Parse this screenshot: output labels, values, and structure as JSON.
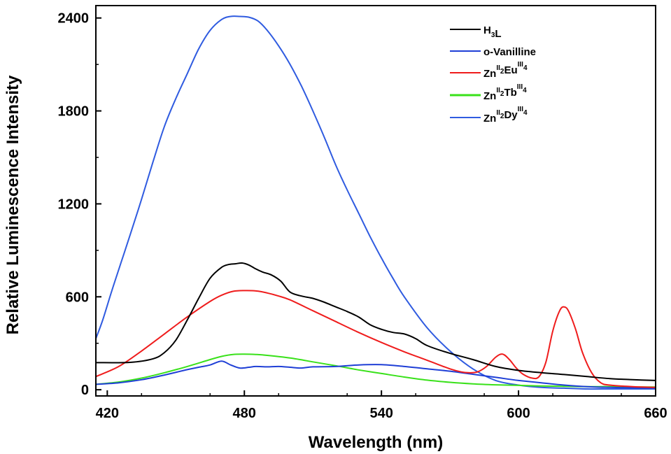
{
  "chart_data": {
    "type": "line",
    "title": "",
    "xlabel": "Wavelength (nm)",
    "ylabel": "Relative Luminescence Intensity",
    "xlim": [
      415,
      660
    ],
    "ylim": [
      -40,
      2480
    ],
    "xticks": [
      420,
      480,
      540,
      600,
      660
    ],
    "yticks": [
      0,
      600,
      1200,
      1800,
      2400
    ],
    "xtick_labels": [
      "420",
      "480",
      "540",
      "600",
      "660"
    ],
    "ytick_labels": [
      "0",
      "600",
      "1200",
      "1800",
      "2400"
    ],
    "grid": false,
    "legend_position": "top-right",
    "series": [
      {
        "name": "H3L",
        "legend": {
          "parts": [
            {
              "t": "H"
            },
            {
              "t": "3",
              "sub": true
            },
            {
              "t": "L"
            }
          ]
        },
        "color": "#000000",
        "x": [
          415,
          430,
          440,
          445,
          450,
          455,
          460,
          465,
          470,
          473,
          476,
          479,
          482,
          485,
          488,
          492,
          496,
          500,
          505,
          510,
          515,
          520,
          525,
          530,
          535,
          540,
          545,
          550,
          555,
          560,
          570,
          580,
          590,
          600,
          610,
          620,
          630,
          640,
          650,
          660
        ],
        "y": [
          175,
          177,
          200,
          240,
          320,
          450,
          590,
          720,
          790,
          808,
          813,
          818,
          805,
          780,
          760,
          740,
          700,
          630,
          605,
          590,
          565,
          535,
          505,
          470,
          420,
          390,
          370,
          360,
          330,
          285,
          235,
          195,
          150,
          125,
          110,
          98,
          85,
          72,
          65,
          60
        ]
      },
      {
        "name": "o-Vanilline",
        "legend": {
          "parts": [
            {
              "t": "o-Vanilline"
            }
          ]
        },
        "color": "#1f3fd6",
        "x": [
          415,
          425,
          435,
          445,
          455,
          460,
          465,
          470,
          474,
          478,
          482,
          485,
          490,
          495,
          500,
          505,
          510,
          520,
          530,
          540,
          550,
          560,
          570,
          580,
          590,
          600,
          610,
          620,
          630,
          640,
          650,
          660
        ],
        "y": [
          35,
          45,
          65,
          95,
          130,
          145,
          160,
          185,
          160,
          140,
          145,
          150,
          148,
          150,
          145,
          140,
          148,
          150,
          160,
          162,
          150,
          135,
          120,
          100,
          80,
          60,
          45,
          30,
          20,
          15,
          12,
          10
        ]
      },
      {
        "name": "ZnII2EuIII4",
        "legend": {
          "parts": [
            {
              "t": "Zn"
            },
            {
              "t": "II",
              "sup": true
            },
            {
              "t": "2",
              "sub": true
            },
            {
              "t": "Eu"
            },
            {
              "t": "III",
              "sup": true
            },
            {
              "t": "4",
              "sub": true
            }
          ]
        },
        "color": "#ef1c1c",
        "x": [
          415,
          425,
          435,
          445,
          455,
          465,
          470,
          475,
          480,
          485,
          490,
          495,
          500,
          510,
          520,
          530,
          540,
          550,
          560,
          570,
          575,
          578,
          582,
          586,
          590,
          593,
          596,
          599,
          602,
          606,
          609,
          612,
          615,
          618,
          620,
          622,
          625,
          628,
          632,
          636,
          640,
          650,
          660
        ],
        "y": [
          85,
          150,
          250,
          360,
          470,
          570,
          610,
          635,
          640,
          638,
          625,
          605,
          580,
          510,
          440,
          370,
          305,
          245,
          190,
          135,
          115,
          110,
          115,
          150,
          210,
          230,
          195,
          140,
          100,
          75,
          85,
          180,
          380,
          510,
          535,
          505,
          390,
          240,
          110,
          45,
          30,
          20,
          15
        ]
      },
      {
        "name": "ZnII2TbIII4",
        "legend": {
          "parts": [
            {
              "t": "Zn"
            },
            {
              "t": "II",
              "sup": true
            },
            {
              "t": "2",
              "sub": true
            },
            {
              "t": "Tb"
            },
            {
              "t": "III",
              "sup": true
            },
            {
              "t": "4",
              "sub": true
            }
          ]
        },
        "color": "#39e11a",
        "x": [
          415,
          425,
          435,
          445,
          455,
          465,
          470,
          475,
          480,
          485,
          490,
          500,
          510,
          520,
          530,
          540,
          550,
          560,
          570,
          580,
          590,
          600,
          610,
          620,
          630,
          640,
          650,
          660
        ],
        "y": [
          35,
          50,
          75,
          110,
          150,
          195,
          215,
          228,
          230,
          228,
          222,
          205,
          180,
          155,
          128,
          105,
          82,
          62,
          48,
          38,
          32,
          28,
          24,
          22,
          20,
          20,
          18,
          18
        ]
      },
      {
        "name": "ZnII2DyIII4",
        "legend": {
          "parts": [
            {
              "t": "Zn"
            },
            {
              "t": "II",
              "sup": true
            },
            {
              "t": "2",
              "sub": true
            },
            {
              "t": "Dy"
            },
            {
              "t": "III",
              "sup": true
            },
            {
              "t": "4",
              "sub": true
            }
          ]
        },
        "color": "#2f5be0",
        "x": [
          415,
          418,
          422,
          426,
          430,
          435,
          440,
          445,
          450,
          455,
          460,
          465,
          470,
          474,
          478,
          482,
          486,
          490,
          495,
          500,
          505,
          510,
          515,
          520,
          525,
          530,
          535,
          540,
          545,
          550,
          560,
          570,
          580,
          590,
          600,
          610,
          620,
          630,
          640,
          650,
          660
        ],
        "y": [
          330,
          450,
          640,
          820,
          1000,
          1230,
          1470,
          1700,
          1880,
          2040,
          2200,
          2320,
          2390,
          2410,
          2410,
          2405,
          2380,
          2320,
          2220,
          2100,
          1960,
          1800,
          1630,
          1450,
          1290,
          1140,
          990,
          850,
          720,
          600,
          400,
          250,
          135,
          60,
          30,
          15,
          10,
          5,
          5,
          5,
          5
        ]
      }
    ]
  }
}
